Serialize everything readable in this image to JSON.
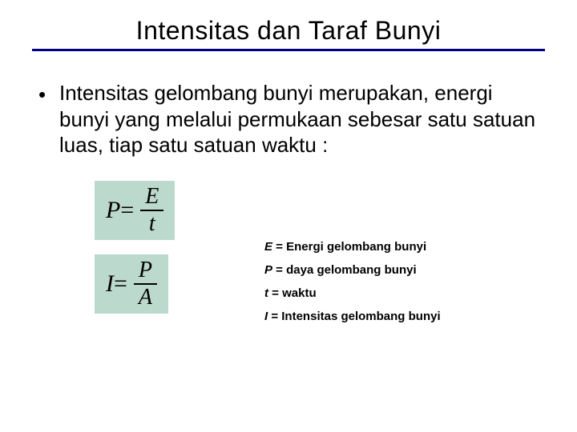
{
  "title": "Intensitas dan Taraf  Bunyi",
  "bullet": {
    "dot": "•",
    "text": "Intensitas gelombang bunyi merupakan, energi bunyi yang melalui permukaan sebesar satu satuan luas, tiap satu satuan waktu :"
  },
  "formulas": {
    "p": {
      "lhs": "P",
      "eq": " = ",
      "num": "E",
      "den": "t"
    },
    "i": {
      "lhs": "I",
      "eq": " = ",
      "num": "P",
      "den": "A"
    },
    "box_bg": "#bcd9cd"
  },
  "legend": {
    "e": {
      "var": "E",
      "rest": " = Energi gelombang bunyi"
    },
    "p": {
      "var": "P",
      "rest": " = daya gelombang bunyi"
    },
    "t": {
      "var": "t",
      "rest": "  = waktu"
    },
    "i": {
      "var": "I",
      "rest": " =  Intensitas gelombang bunyi"
    }
  },
  "colors": {
    "rule": "#000080",
    "text": "#000000",
    "background": "#ffffff"
  }
}
